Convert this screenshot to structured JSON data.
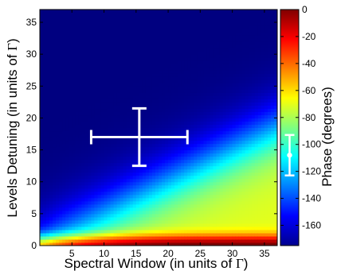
{
  "chart_data": {
    "type": "heatmap",
    "xlabel": {
      "text": "Spectral Window (in units of ",
      "symbol": "Γ",
      "close": ")"
    },
    "ylabel": {
      "text": "Levels Detuning (in units of ",
      "symbol": "Γ",
      "close": ")"
    },
    "colorbar_label": "Phase (degrees)",
    "xlim": [
      0,
      37
    ],
    "ylim": [
      0,
      37
    ],
    "x_ticks": [
      5,
      10,
      15,
      20,
      25,
      30,
      35
    ],
    "x_tick_labels": [
      "5",
      "10",
      "15",
      "20",
      "25",
      "30",
      "35"
    ],
    "x_origin_label": "0",
    "y_ticks": [
      0,
      5,
      10,
      15,
      20,
      25,
      30,
      35
    ],
    "y_tick_labels": [
      "0",
      "5",
      "10",
      "15",
      "20",
      "25",
      "30",
      "35"
    ],
    "color_range": [
      -175,
      0
    ],
    "colorbar_ticks": [
      0,
      -20,
      -40,
      -60,
      -80,
      -100,
      -120,
      -140,
      -160
    ],
    "colorbar_tick_labels": [
      "0",
      "-20",
      "-40",
      "-60",
      "-80",
      "-100",
      "-120",
      "-140",
      "-160"
    ],
    "colormap": "jet",
    "grid": false,
    "error_bar_main": {
      "x": 15.5,
      "y": 17,
      "x_err": 7.5,
      "y_err": 4.5,
      "color": "#ffffff"
    },
    "error_bar_colorbar": {
      "value": -108,
      "low": -123,
      "high": -93,
      "color": "#ffffff"
    }
  }
}
